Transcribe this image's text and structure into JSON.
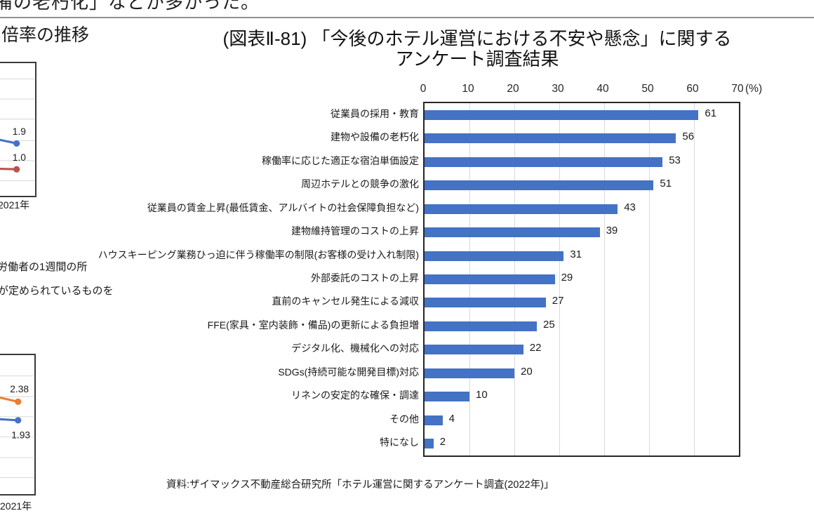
{
  "page": {
    "top_clipped_text": "備の老朽化」などが多かった。",
    "left_column": {
      "chart_title_fragment": "倍率の推移",
      "top_chart_xlabel": "2021年",
      "note_line1": "労働者の1週間の所",
      "note_line2": "が定められているものを",
      "bottom_chart_xlabel": "2021年"
    },
    "figure": {
      "title_line1": "(図表Ⅱ-81) 「今後のホテル運営における不安や懸念」に関する",
      "title_line2": "アンケート調査結果",
      "source": "資料:ザイマックス不動産総合研究所「ホテル運営に関するアンケート調査(2022年)」"
    }
  },
  "colors": {
    "bar_blue": "#4472C4",
    "line_red": "#C0504D",
    "line_orange": "#ED7D31",
    "grid_gray": "#D9D9D9"
  },
  "chart_data": [
    {
      "type": "bar",
      "orientation": "horizontal",
      "title": "(図表Ⅱ-81)「今後のホテル運営における不安や懸念」に関するアンケート調査結果",
      "categories": [
        "従業員の採用・教育",
        "建物や設備の老朽化",
        "稼働率に応じた適正な宿泊単価設定",
        "周辺ホテルとの競争の激化",
        "従業員の賃金上昇(最低賃金、アルバイトの社会保障負担など)",
        "建物維持管理のコストの上昇",
        "ハウスキーピング業務ひっ迫に伴う稼働率の制限(お客様の受け入れ制限)",
        "外部委託のコストの上昇",
        "直前のキャンセル発生による減収",
        "FFE(家具・室内装飾・備品)の更新による負担増",
        "デジタル化、機械化への対応",
        "SDGs(持続可能な開発目標)対応",
        "リネンの安定的な確保・調達",
        "その他",
        "特になし"
      ],
      "values": [
        61,
        56,
        53,
        51,
        43,
        39,
        31,
        29,
        27,
        25,
        22,
        20,
        10,
        4,
        2
      ],
      "xlabel": "(%)",
      "xlim": [
        0,
        70
      ],
      "x_ticks": [
        "0",
        "10",
        "20",
        "30",
        "40",
        "50",
        "60",
        "70"
      ],
      "bar_color": "#4472C4",
      "grid": true,
      "data_labels": true,
      "legend": false
    },
    {
      "type": "line",
      "clipped": true,
      "x_tick_visible": "2021年",
      "series": [
        {
          "label": "1.9",
          "value": 1.9,
          "color": "#4472C4"
        },
        {
          "label": "1.0",
          "value": 1.0,
          "color": "#C0504D"
        }
      ]
    },
    {
      "type": "line",
      "clipped": true,
      "x_tick_visible": "2021年",
      "series": [
        {
          "label": "2.38",
          "value": 2.38,
          "color": "#ED7D31"
        },
        {
          "label": "1.93",
          "value": 1.93,
          "color": "#4472C4"
        }
      ]
    }
  ]
}
